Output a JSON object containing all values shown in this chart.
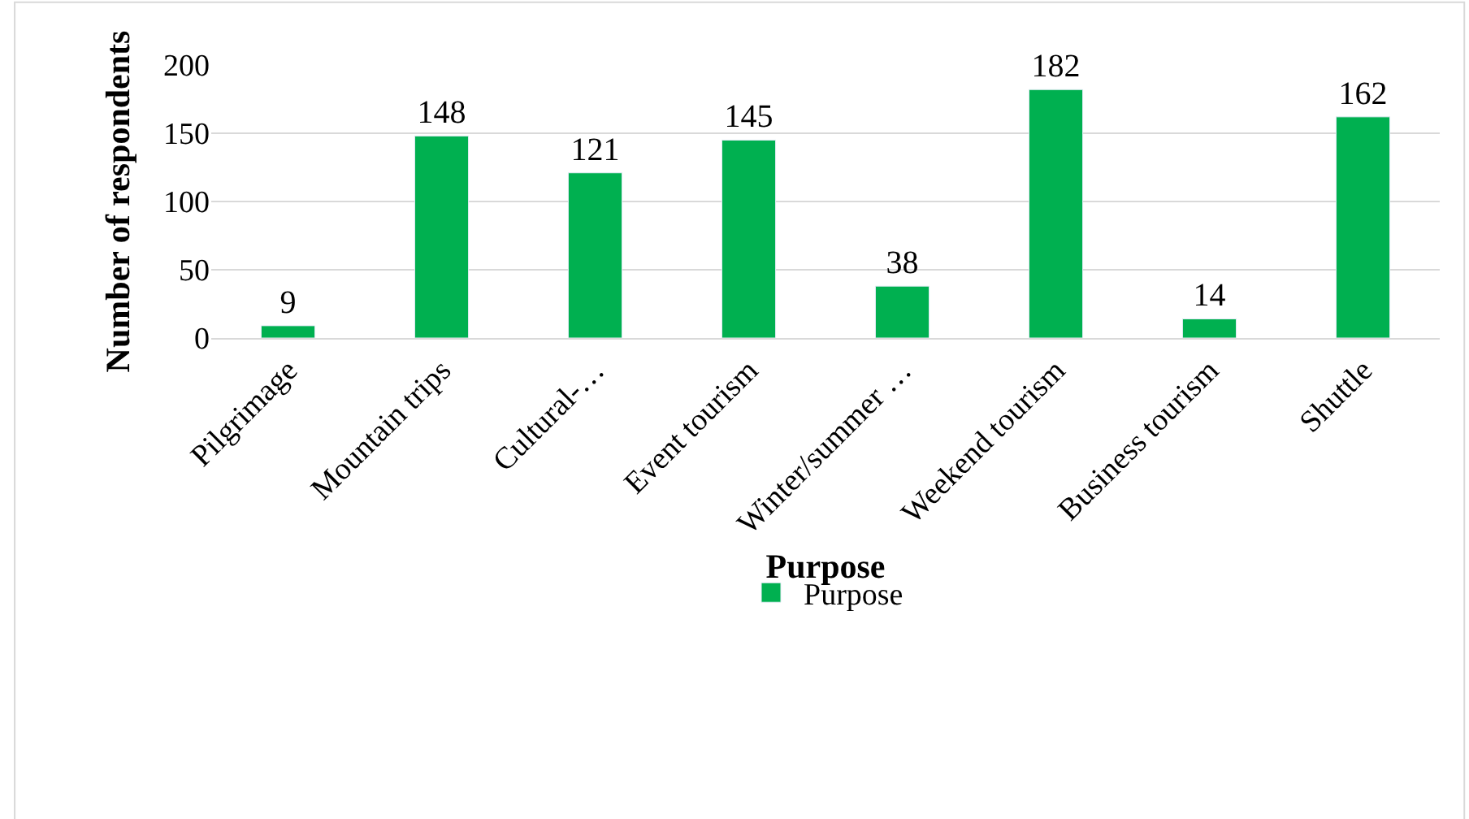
{
  "chart_data": {
    "type": "bar",
    "xlabel": "Purpose",
    "ylabel": "Number of respondents",
    "categories": [
      "Pilgrimage",
      "Mountain trips",
      "Cultural-…",
      "Event tourism",
      "Winter/summer …",
      "Weekend tourism",
      "Business tourism",
      "Shuttle"
    ],
    "series": [
      {
        "name": "Purpose",
        "color": "#00b050",
        "values": [
          9,
          148,
          121,
          145,
          38,
          182,
          14,
          162
        ]
      }
    ],
    "ylim": [
      0,
      200
    ],
    "yticks": [
      0,
      50,
      100,
      150,
      200
    ],
    "grid": "y",
    "legend": "bottom",
    "data_labels": true
  }
}
